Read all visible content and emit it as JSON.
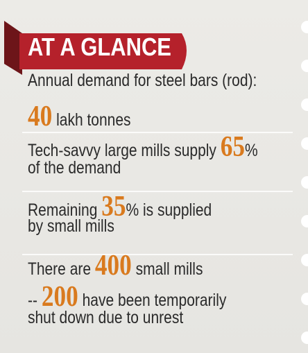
{
  "header": {
    "title": "AT A GLANCE"
  },
  "items": [
    {
      "lines": [
        [
          {
            "text": "Annual demand for steel bars (rod):"
          }
        ],
        [
          {
            "text": "40",
            "emphasis": true
          },
          {
            "text": " lakh tonnes"
          }
        ]
      ]
    },
    {
      "lines": [
        [
          {
            "text": "Tech-savvy large mills supply "
          },
          {
            "text": "65",
            "emphasis": true
          },
          {
            "text": "%"
          }
        ],
        [
          {
            "text": "of the demand"
          }
        ]
      ]
    },
    {
      "lines": [
        [
          {
            "text": "Remaining "
          },
          {
            "text": "35",
            "emphasis": true
          },
          {
            "text": "% is supplied"
          }
        ],
        [
          {
            "text": "by small mills"
          }
        ]
      ]
    },
    {
      "lines": [
        [
          {
            "text": "There are "
          },
          {
            "text": "400",
            "emphasis": true
          },
          {
            "text": " small mills"
          }
        ],
        [
          {
            "text": "-- "
          },
          {
            "text": "200",
            "emphasis": true
          },
          {
            "text": " have been temporarily"
          }
        ],
        [
          {
            "text": "shut down due to unrest"
          }
        ]
      ]
    }
  ]
}
